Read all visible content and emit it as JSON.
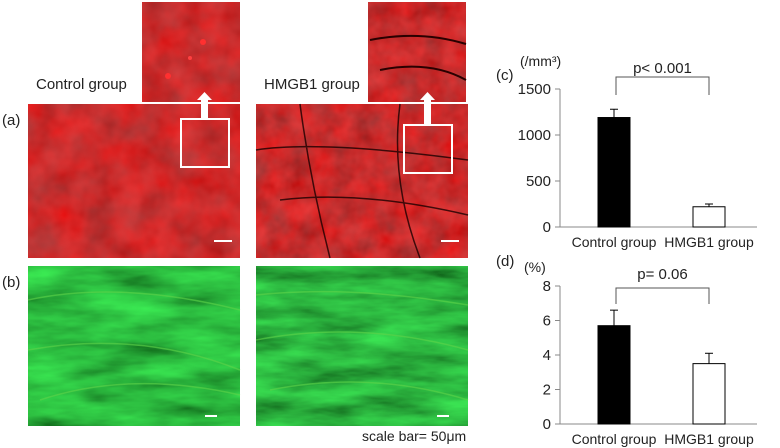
{
  "labels": {
    "group_left": "Control group",
    "group_right": "HMGB1 group",
    "panel_a": "(a)",
    "panel_b": "(b)",
    "scale_bar": "scale bar= 50μm"
  },
  "colors": {
    "red_stain": "#8a0a0a",
    "green_stain": "#1f5a12",
    "control_bar": "#000000",
    "hmgb1_bar": "#ffffff"
  },
  "chart_data": [
    {
      "type": "bar",
      "panel_label": "(c)",
      "unit_label": "(/mm³)",
      "categories": [
        "Control group",
        "HMGB1 group"
      ],
      "values": [
        1190,
        220
      ],
      "errors": [
        90,
        30
      ],
      "ylim": [
        0,
        1500
      ],
      "yticks": [
        0,
        500,
        1000,
        1500
      ],
      "significance": "p< 0.001",
      "grid": false
    },
    {
      "type": "bar",
      "panel_label": "(d)",
      "unit_label": "(%)",
      "categories": [
        "Control group",
        "HMGB1 group"
      ],
      "values": [
        5.7,
        3.5
      ],
      "errors": [
        0.9,
        0.6
      ],
      "ylim": [
        0,
        8
      ],
      "yticks": [
        0,
        2,
        4,
        6,
        8
      ],
      "significance": "p= 0.06",
      "grid": false
    }
  ]
}
